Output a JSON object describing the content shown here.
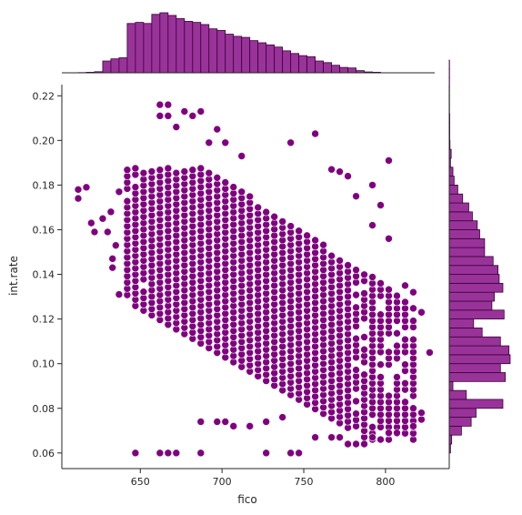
{
  "chart_data": {
    "type": "scatter",
    "kind": "jointplot",
    "title": "",
    "xlabel": "fico",
    "ylabel": "int.rate",
    "xlim": [
      602,
      839
    ],
    "ylim": [
      0.053,
      0.225
    ],
    "xticks": [
      650,
      700,
      750,
      800
    ],
    "yticks": [
      0.06,
      0.08,
      0.1,
      0.12,
      0.14,
      0.16,
      0.18,
      0.2,
      0.22
    ],
    "point_color": "#800080",
    "hist_color": "#993399",
    "grid": false,
    "marginal_x_hist": {
      "bin_start": 612,
      "bin_width": 5,
      "counts": [
        2,
        5,
        10,
        110,
        130,
        140,
        460,
        470,
        460,
        545,
        560,
        535,
        505,
        480,
        470,
        450,
        410,
        395,
        360,
        340,
        330,
        300,
        280,
        260,
        240,
        205,
        180,
        160,
        150,
        110,
        95,
        70,
        50,
        45,
        20,
        8,
        5
      ]
    },
    "marginal_y_hist": {
      "bin_start": 0.06,
      "bin_width": 0.004,
      "counts": [
        5,
        10,
        50,
        90,
        110,
        220,
        70,
        15,
        230,
        210,
        250,
        245,
        210,
        135,
        100,
        225,
        175,
        185,
        220,
        205,
        200,
        180,
        145,
        145,
        125,
        115,
        95,
        80,
        55,
        35,
        20,
        15,
        5,
        8,
        3,
        2,
        2,
        2,
        1,
        1,
        1,
        1,
        1,
        1
      ]
    },
    "points": [
      [
        612,
        0.178
      ],
      [
        612,
        0.174
      ],
      [
        617,
        0.179
      ],
      [
        620,
        0.163
      ],
      [
        622,
        0.159
      ],
      [
        627,
        0.165
      ],
      [
        630,
        0.159
      ],
      [
        632,
        0.168
      ],
      [
        633,
        0.147
      ],
      [
        633,
        0.143
      ],
      [
        635,
        0.153
      ],
      [
        637,
        0.177
      ],
      [
        637,
        0.131
      ],
      [
        647,
        0.06
      ],
      [
        662,
        0.06
      ],
      [
        667,
        0.06
      ],
      [
        672,
        0.06
      ],
      [
        687,
        0.06
      ],
      [
        727,
        0.06
      ],
      [
        742,
        0.06
      ],
      [
        747,
        0.06
      ],
      [
        662,
        0.211
      ],
      [
        662,
        0.216
      ],
      [
        667,
        0.216
      ],
      [
        667,
        0.211
      ],
      [
        672,
        0.206
      ],
      [
        677,
        0.213
      ],
      [
        682,
        0.211
      ],
      [
        687,
        0.213
      ],
      [
        692,
        0.199
      ],
      [
        697,
        0.205
      ],
      [
        702,
        0.199
      ],
      [
        712,
        0.193
      ],
      [
        742,
        0.199
      ],
      [
        757,
        0.203
      ],
      [
        767,
        0.187
      ],
      [
        772,
        0.186
      ],
      [
        777,
        0.184
      ],
      [
        782,
        0.175
      ],
      [
        792,
        0.18
      ],
      [
        797,
        0.171
      ],
      [
        802,
        0.191
      ],
      [
        792,
        0.162
      ],
      [
        802,
        0.156
      ],
      [
        812,
        0.135
      ],
      [
        817,
        0.132
      ],
      [
        822,
        0.123
      ],
      [
        827,
        0.105
      ],
      [
        687,
        0.074
      ],
      [
        697,
        0.074
      ],
      [
        702,
        0.074
      ],
      [
        707,
        0.072
      ],
      [
        717,
        0.072
      ],
      [
        727,
        0.074
      ],
      [
        737,
        0.076
      ],
      [
        757,
        0.067
      ],
      [
        767,
        0.067
      ],
      [
        772,
        0.067
      ],
      [
        777,
        0.064
      ],
      [
        782,
        0.064
      ],
      [
        787,
        0.064
      ],
      [
        792,
        0.067
      ],
      [
        802,
        0.069
      ],
      [
        807,
        0.069
      ],
      [
        817,
        0.072
      ],
      [
        822,
        0.075
      ],
      [
        822,
        0.078
      ]
    ]
  }
}
